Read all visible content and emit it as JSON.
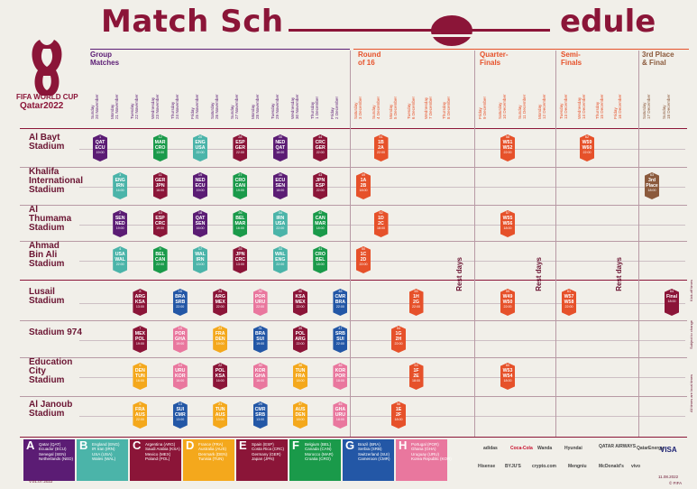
{
  "title": {
    "left": "Match Sch",
    "right": "edule"
  },
  "logo": {
    "line1": "FIFA WORLD CUP",
    "line2": "Qatar2022"
  },
  "phases": [
    {
      "label": "Group\nMatches",
      "color": "#5b1c74"
    },
    {
      "label": "Round\nof 16",
      "color": "#e6512a"
    },
    {
      "label": "Quarter-\nFinals",
      "color": "#e6512a"
    },
    {
      "label": "Semi-\nFinals",
      "color": "#e6512a"
    },
    {
      "label": "3rd Place\n& Final",
      "color": "#8b5a3c"
    }
  ],
  "dates": [
    "Sunday\n20 November",
    "Monday\n21 November",
    "Tuesday\n22 November",
    "Wednesday\n23 November",
    "Thursday\n24 November",
    "Friday\n25 November",
    "Saturday\n26 November",
    "Sunday\n27 November",
    "Monday\n28 November",
    "Tuesday\n29 November",
    "Wednesday\n30 November",
    "Thursday\n1 December",
    "Friday\n2 December",
    "Saturday\n3 December",
    "Sunday\n4 December",
    "Monday\n5 December",
    "Tuesday\n6 December",
    "Wednesday\n7 December",
    "Thursday\n8 December",
    "Friday\n9 December",
    "Saturday\n10 December",
    "Sunday\n11 December",
    "Monday\n12 December",
    "Tuesday\n13 December",
    "Wednesday\n14 December",
    "Thursday\n15 December",
    "Friday\n16 December",
    "Saturday\n17 December",
    "Sunday\n18 December"
  ],
  "stadiums": [
    "Al Bayt\nStadium",
    "Khalifa\nInternational\nStadium",
    "Al\nThumama\nStadium",
    "Ahmad\nBin Ali\nStadium",
    "Lusail\nStadium",
    "Stadium 974",
    "Education\nCity\nStadium",
    "Al Janoub\nStadium"
  ],
  "rest_label": "Rest days",
  "colors": {
    "A": "#5b1c74",
    "B": "#4bb4a9",
    "C": "#8b1538",
    "D": "#f4a81c",
    "E": "#8b1538",
    "F": "#1a9a4a",
    "G": "#2357a6",
    "H": "#e9779e",
    "KO": "#e6512a",
    "third": "#8b5a3c"
  },
  "matches": [
    {
      "n": "1",
      "t1": "QAT",
      "t2": "ECU",
      "tm": "19:00",
      "g": "A",
      "col": 0,
      "row": 0
    },
    {
      "n": "12",
      "t1": "MAR",
      "t2": "CRO",
      "tm": "13:00",
      "g": "F",
      "col": 3,
      "row": 0
    },
    {
      "n": "20",
      "t1": "ENG",
      "t2": "USA",
      "tm": "22:00",
      "g": "B",
      "col": 5,
      "row": 0
    },
    {
      "n": "28",
      "t1": "ESP",
      "t2": "GER",
      "tm": "22:00",
      "g": "E",
      "col": 7,
      "row": 0
    },
    {
      "n": "35",
      "t1": "NED",
      "t2": "QAT",
      "tm": "18:00",
      "g": "A",
      "col": 9,
      "row": 0
    },
    {
      "n": "44",
      "t1": "CRC",
      "t2": "GER",
      "tm": "22:00",
      "g": "E",
      "col": 11,
      "row": 0
    },
    {
      "n": "51",
      "t1": "1B",
      "t2": "2A",
      "tm": "22:00",
      "g": "KO",
      "col": 14,
      "row": 0
    },
    {
      "n": "58",
      "t1": "W51",
      "t2": "W52",
      "tm": "22:00",
      "g": "KO",
      "col": 20,
      "row": 0
    },
    {
      "n": "62",
      "t1": "W59",
      "t2": "W60",
      "tm": "22:00",
      "g": "KO",
      "col": 24,
      "row": 0
    },
    {
      "n": "3",
      "t1": "ENG",
      "t2": "IRN",
      "tm": "16:00",
      "g": "B",
      "col": 1,
      "row": 1
    },
    {
      "n": "11",
      "t1": "GER",
      "t2": "JPN",
      "tm": "16:00",
      "g": "E",
      "col": 3,
      "row": 1
    },
    {
      "n": "19",
      "t1": "NED",
      "t2": "ECU",
      "tm": "19:00",
      "g": "A",
      "col": 5,
      "row": 1
    },
    {
      "n": "27",
      "t1": "CRO",
      "t2": "CAN",
      "tm": "19:00",
      "g": "F",
      "col": 7,
      "row": 1
    },
    {
      "n": "36",
      "t1": "ECU",
      "t2": "SEN",
      "tm": "18:00",
      "g": "A",
      "col": 9,
      "row": 1
    },
    {
      "n": "43",
      "t1": "JPN",
      "t2": "ESP",
      "tm": "22:00",
      "g": "E",
      "col": 11,
      "row": 1
    },
    {
      "n": "49",
      "t1": "1A",
      "t2": "2B",
      "tm": "18:00",
      "g": "KO",
      "col": 13,
      "row": 1
    },
    {
      "n": "63",
      "t1": "3rd\nPlace",
      "t2": "",
      "tm": "18:00",
      "g": "third",
      "col": 27,
      "row": 1
    },
    {
      "n": "2",
      "t1": "SEN",
      "t2": "NED",
      "tm": "19:00",
      "g": "A",
      "col": 1,
      "row": 2
    },
    {
      "n": "10",
      "t1": "ESP",
      "t2": "CRC",
      "tm": "19:00",
      "g": "E",
      "col": 3,
      "row": 2
    },
    {
      "n": "18",
      "t1": "QAT",
      "t2": "SEN",
      "tm": "16:00",
      "g": "A",
      "col": 5,
      "row": 2
    },
    {
      "n": "26",
      "t1": "BEL",
      "t2": "MAR",
      "tm": "16:00",
      "g": "F",
      "col": 7,
      "row": 2
    },
    {
      "n": "34",
      "t1": "IRN",
      "t2": "USA",
      "tm": "22:00",
      "g": "B",
      "col": 9,
      "row": 2
    },
    {
      "n": "42",
      "t1": "CAN",
      "t2": "MAR",
      "tm": "18:00",
      "g": "F",
      "col": 11,
      "row": 2
    },
    {
      "n": "52",
      "t1": "1D",
      "t2": "2C",
      "tm": "18:00",
      "g": "KO",
      "col": 14,
      "row": 2
    },
    {
      "n": "57",
      "t1": "W55",
      "t2": "W56",
      "tm": "18:00",
      "g": "KO",
      "col": 20,
      "row": 2
    },
    {
      "n": "4",
      "t1": "USA",
      "t2": "WAL",
      "tm": "22:00",
      "g": "B",
      "col": 1,
      "row": 3
    },
    {
      "n": "9",
      "t1": "BEL",
      "t2": "CAN",
      "tm": "22:00",
      "g": "F",
      "col": 3,
      "row": 3
    },
    {
      "n": "17",
      "t1": "WAL",
      "t2": "IRN",
      "tm": "13:00",
      "g": "B",
      "col": 5,
      "row": 3
    },
    {
      "n": "25",
      "t1": "JPN",
      "t2": "CRC",
      "tm": "13:00",
      "g": "E",
      "col": 7,
      "row": 3
    },
    {
      "n": "33",
      "t1": "WAL",
      "t2": "ENG",
      "tm": "22:00",
      "g": "B",
      "col": 9,
      "row": 3
    },
    {
      "n": "41",
      "t1": "CRO",
      "t2": "BEL",
      "tm": "18:00",
      "g": "F",
      "col": 11,
      "row": 3
    },
    {
      "n": "50",
      "t1": "1C",
      "t2": "2D",
      "tm": "22:00",
      "g": "KO",
      "col": 13,
      "row": 3
    },
    {
      "n": "8",
      "t1": "ARG",
      "t2": "KSA",
      "tm": "13:00",
      "g": "C",
      "col": 2,
      "row": 4
    },
    {
      "n": "16",
      "t1": "BRA",
      "t2": "SRB",
      "tm": "22:00",
      "g": "G",
      "col": 4,
      "row": 4
    },
    {
      "n": "24",
      "t1": "ARG",
      "t2": "MEX",
      "tm": "22:00",
      "g": "C",
      "col": 6,
      "row": 4
    },
    {
      "n": "32",
      "t1": "POR",
      "t2": "URU",
      "tm": "22:00",
      "g": "H",
      "col": 8,
      "row": 4
    },
    {
      "n": "40",
      "t1": "KSA",
      "t2": "MEX",
      "tm": "22:00",
      "g": "C",
      "col": 10,
      "row": 4
    },
    {
      "n": "48",
      "t1": "CMR",
      "t2": "BRA",
      "tm": "22:00",
      "g": "G",
      "col": 12,
      "row": 4
    },
    {
      "n": "55",
      "t1": "1H",
      "t2": "2G",
      "tm": "22:00",
      "g": "KO",
      "col": 16,
      "row": 4
    },
    {
      "n": "59",
      "t1": "W49",
      "t2": "W50",
      "tm": "22:00",
      "g": "KO",
      "col": 20,
      "row": 4
    },
    {
      "n": "61",
      "t1": "W57",
      "t2": "W58",
      "tm": "22:00",
      "g": "KO",
      "col": 23,
      "row": 4
    },
    {
      "n": "64",
      "t1": "Final",
      "t2": "",
      "tm": "18:00",
      "g": "C",
      "col": 28,
      "row": 4
    },
    {
      "n": "7",
      "t1": "MEX",
      "t2": "POL",
      "tm": "19:00",
      "g": "C",
      "col": 2,
      "row": 5
    },
    {
      "n": "15",
      "t1": "POR",
      "t2": "GHA",
      "tm": "19:00",
      "g": "H",
      "col": 4,
      "row": 5
    },
    {
      "n": "23",
      "t1": "FRA",
      "t2": "DEN",
      "tm": "19:00",
      "g": "D",
      "col": 6,
      "row": 5
    },
    {
      "n": "31",
      "t1": "BRA",
      "t2": "SUI",
      "tm": "19:00",
      "g": "G",
      "col": 8,
      "row": 5
    },
    {
      "n": "39",
      "t1": "POL",
      "t2": "ARG",
      "tm": "22:00",
      "g": "C",
      "col": 10,
      "row": 5
    },
    {
      "n": "47",
      "t1": "SRB",
      "t2": "SUI",
      "tm": "22:00",
      "g": "G",
      "col": 12,
      "row": 5
    },
    {
      "n": "54",
      "t1": "1G",
      "t2": "2H",
      "tm": "22:00",
      "g": "KO",
      "col": 15,
      "row": 5
    },
    {
      "n": "6",
      "t1": "DEN",
      "t2": "TUN",
      "tm": "16:00",
      "g": "D",
      "col": 2,
      "row": 6
    },
    {
      "n": "14",
      "t1": "URU",
      "t2": "KOR",
      "tm": "16:00",
      "g": "H",
      "col": 4,
      "row": 6
    },
    {
      "n": "22",
      "t1": "POL",
      "t2": "KSA",
      "tm": "16:00",
      "g": "C",
      "col": 6,
      "row": 6
    },
    {
      "n": "30",
      "t1": "KOR",
      "t2": "GHA",
      "tm": "16:00",
      "g": "H",
      "col": 8,
      "row": 6
    },
    {
      "n": "38",
      "t1": "TUN",
      "t2": "FRA",
      "tm": "18:00",
      "g": "D",
      "col": 10,
      "row": 6
    },
    {
      "n": "46",
      "t1": "KOR",
      "t2": "POR",
      "tm": "18:00",
      "g": "H",
      "col": 12,
      "row": 6
    },
    {
      "n": "53",
      "t1": "1F",
      "t2": "2E",
      "tm": "18:00",
      "g": "KO",
      "col": 16,
      "row": 6
    },
    {
      "n": "60",
      "t1": "W53",
      "t2": "W54",
      "tm": "18:00",
      "g": "KO",
      "col": 20,
      "row": 6
    },
    {
      "n": "5",
      "t1": "FRA",
      "t2": "AUS",
      "tm": "22:00",
      "g": "D",
      "col": 2,
      "row": 7
    },
    {
      "n": "13",
      "t1": "SUI",
      "t2": "CMR",
      "tm": "13:00",
      "g": "G",
      "col": 4,
      "row": 7
    },
    {
      "n": "21",
      "t1": "TUN",
      "t2": "AUS",
      "tm": "13:00",
      "g": "D",
      "col": 6,
      "row": 7
    },
    {
      "n": "29",
      "t1": "CMR",
      "t2": "SRB",
      "tm": "13:00",
      "g": "G",
      "col": 8,
      "row": 7
    },
    {
      "n": "37",
      "t1": "AUS",
      "t2": "DEN",
      "tm": "18:00",
      "g": "D",
      "col": 10,
      "row": 7
    },
    {
      "n": "45",
      "t1": "GHA",
      "t2": "URU",
      "tm": "18:00",
      "g": "H",
      "col": 12,
      "row": 7
    },
    {
      "n": "56",
      "t1": "1E",
      "t2": "2F",
      "tm": "18:00",
      "g": "KO",
      "col": 15,
      "row": 7
    }
  ],
  "legend": [
    {
      "g": "A",
      "lines": "Qatar (QAT)\nEcuador (ECU)\nSenegal (SEN)\nNetherlands (NED)"
    },
    {
      "g": "B",
      "lines": "England (ENG)\nIR Iran (IRN)\nUSA (USA)\nWales (WAL)"
    },
    {
      "g": "C",
      "lines": "Argentina (ARG)\nSaudi Arabia (KSA)\nMexico (MEX)\nPoland (POL)"
    },
    {
      "g": "D",
      "lines": "France (FRA)\nAustralia (AUS)\nDenmark (DEN)\nTunisia (TUN)"
    },
    {
      "g": "E",
      "lines": "Spain (ESP)\nCosta Rica (CRC)\nGermany (GER)\nJapan (JPN)"
    },
    {
      "g": "F",
      "lines": "Belgium (BEL)\nCanada (CAN)\nMorocco (MAR)\nCroatia (CRO)"
    },
    {
      "g": "G",
      "lines": "Brazil (BRA)\nSerbia (SRB)\nSwitzerland (SUI)\nCameroon (CMR)"
    },
    {
      "g": "H",
      "lines": "Portugal (POR)\nGhana (GHA)\nUruguay (URU)\nKorea Republic (KOR)"
    }
  ],
  "side_notes": [
    "All times are local times",
    "Subject to change",
    "Kick-off times"
  ],
  "footer_left": "V.01.07.2022",
  "footer_right": {
    "date": "11.08.2022",
    "copy": "© FIFA"
  },
  "sponsors": [
    "adidas",
    "Coca-Cola",
    "Wanda",
    "Hyundai",
    "QATAR AIRWAYS",
    "QatarEnergy",
    "VISA",
    "Hisense",
    "BYJU'S",
    "crypto.com",
    "Mengniu",
    "McDonald's",
    "vivo"
  ]
}
